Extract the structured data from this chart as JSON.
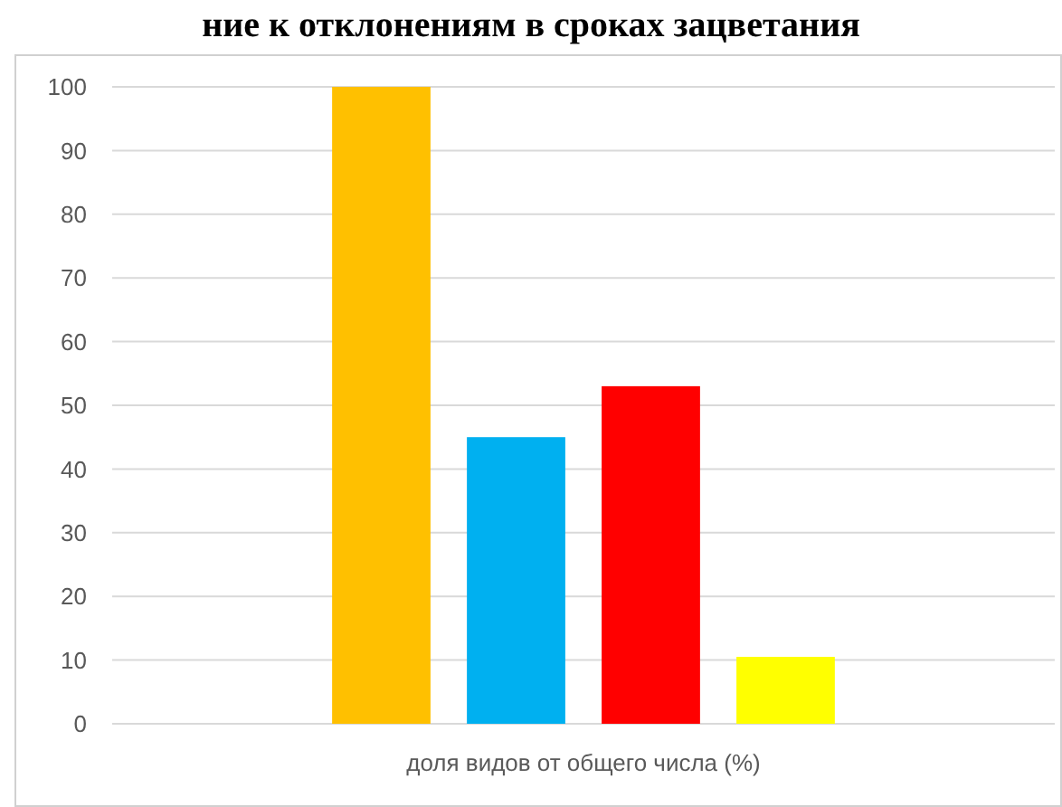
{
  "chart_data": {
    "type": "bar",
    "title": "ние к отклонениям в сроках зацветания",
    "categories": [
      "доля видов от общего числа (%)"
    ],
    "series": [
      {
        "color": "#ffc000",
        "values": [
          100
        ]
      },
      {
        "color": "#00b0f0",
        "values": [
          45
        ]
      },
      {
        "color": "#ff0000",
        "values": [
          53
        ]
      },
      {
        "color": "#ffff00",
        "values": [
          10.5
        ]
      }
    ],
    "ylim": [
      0,
      100
    ],
    "yticks": [
      0,
      10,
      20,
      30,
      40,
      50,
      60,
      70,
      80,
      90,
      100
    ],
    "grid": "y"
  }
}
